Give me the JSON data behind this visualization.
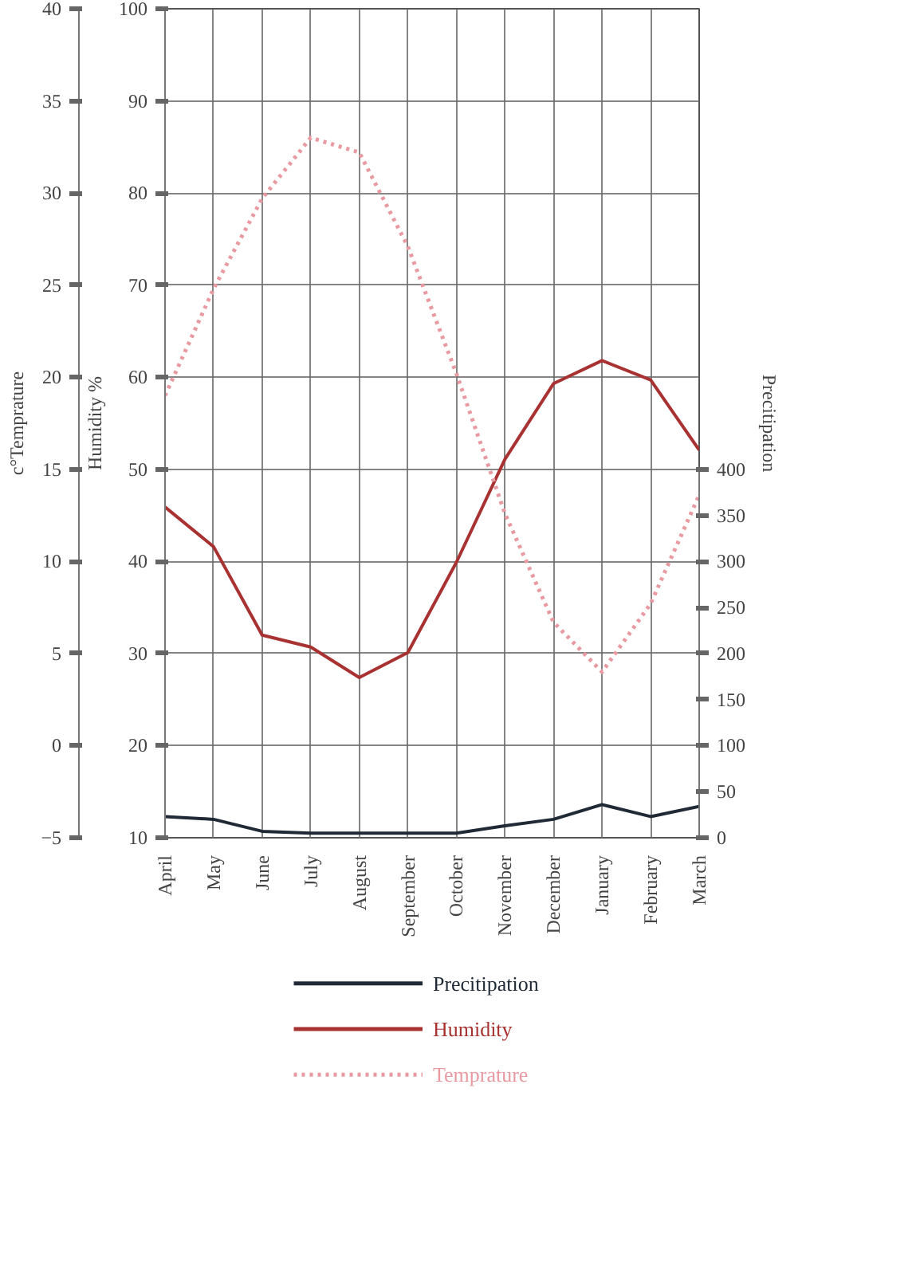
{
  "chart_data": {
    "type": "line",
    "categories": [
      "April",
      "May",
      "June",
      "July",
      "August",
      "September",
      "October",
      "November",
      "December",
      "January",
      "February",
      "March"
    ],
    "ylabel": "c°Temprature",
    "y2label": "Humidity %",
    "y3label": "Precitipation",
    "ylim": [
      -5,
      40
    ],
    "yticks": [
      -5,
      0,
      5,
      10,
      15,
      20,
      25,
      30,
      35,
      40
    ],
    "y2lim": [
      10,
      100
    ],
    "y2ticks": [
      10,
      20,
      30,
      40,
      50,
      60,
      70,
      80,
      90,
      100
    ],
    "y3lim": [
      0,
      900
    ],
    "y3ticks": [
      0,
      50,
      100,
      150,
      200,
      250,
      300,
      350,
      400
    ],
    "series": [
      {
        "name": "Precitipation",
        "color": "#1f2a36",
        "axis": "y3",
        "line_style": "solid",
        "values": [
          23,
          20,
          7,
          5,
          5,
          5,
          5,
          13,
          20,
          36,
          23,
          34
        ]
      },
      {
        "name": "Humidity",
        "color": "#a83232",
        "axis": "y2",
        "line_style": "solid",
        "values": [
          45.9,
          41.6,
          32.0,
          30.7,
          27.4,
          30.1,
          39.9,
          51.1,
          59.3,
          61.8,
          59.7,
          52.1
        ]
      },
      {
        "name": "Temprature",
        "color": "#e89aa0",
        "line_style": "dotted",
        "values": [
          19.0,
          24.8,
          29.7,
          33.0,
          32.2,
          27.1,
          20.2,
          12.6,
          6.7,
          4.0,
          7.7,
          13.6
        ]
      }
    ],
    "grid": true,
    "legend": "bottom"
  }
}
